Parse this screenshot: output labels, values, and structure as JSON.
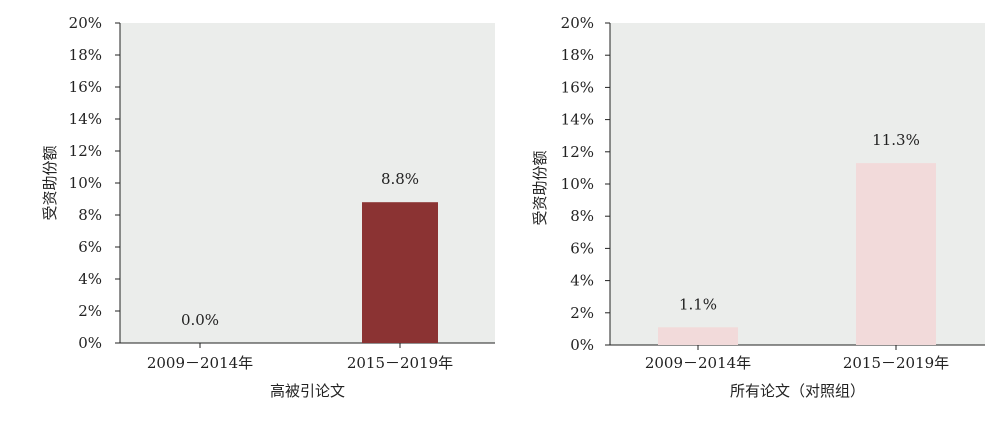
{
  "chart_data": [
    {
      "type": "bar",
      "categories": [
        "2009－2014年",
        "2015－2019年"
      ],
      "values": [
        0.0,
        8.8
      ],
      "data_labels": [
        "0.0%",
        "8.8%"
      ],
      "bar_color": "#8b3333",
      "xlabel": "高被引论文",
      "ylabel": "受资助份额",
      "ylim": [
        0,
        20
      ],
      "y_ticks": [
        "0%",
        "2%",
        "4%",
        "6%",
        "8%",
        "10%",
        "12%",
        "14%",
        "16%",
        "18%",
        "20%"
      ],
      "background": "#ebedeb",
      "grid": false
    },
    {
      "type": "bar",
      "categories": [
        "2009－2014年",
        "2015－2019年"
      ],
      "values": [
        1.1,
        11.3
      ],
      "data_labels": [
        "1.1%",
        "11.3%"
      ],
      "bar_color": "#f2dada",
      "xlabel": "所有论文（对照组）",
      "ylabel": "受资助份额",
      "ylim": [
        0,
        20
      ],
      "y_ticks": [
        "0%",
        "2%",
        "4%",
        "6%",
        "8%",
        "10%",
        "12%",
        "14%",
        "16%",
        "18%",
        "20%"
      ],
      "background": "#ebedeb",
      "grid": false
    }
  ]
}
